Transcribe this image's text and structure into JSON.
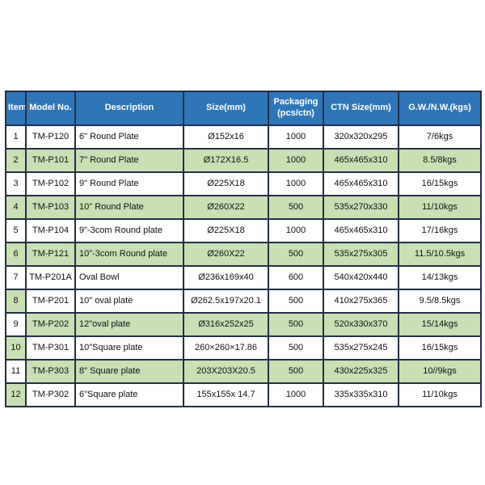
{
  "table": {
    "headers": [
      {
        "key": "item",
        "label": "Item"
      },
      {
        "key": "model",
        "label": "Model No."
      },
      {
        "key": "description",
        "label": "Description"
      },
      {
        "key": "size",
        "label": "Size(mm)"
      },
      {
        "key": "packaging",
        "label": "Packaging (pcs/ctn)"
      },
      {
        "key": "ctn",
        "label": "CTN Size(mm)"
      },
      {
        "key": "gw",
        "label": "G.W./N.W.(kgs)"
      }
    ],
    "rows": [
      {
        "item": "1",
        "model": "TM-P120",
        "description": "6\" Round Plate",
        "size": "Ø152x16",
        "packaging": "1000",
        "ctn": "320x320x295",
        "gw": "7/6kgs",
        "item_shaded": false,
        "data_shaded": false
      },
      {
        "item": "2",
        "model": "TM-P101",
        "description": "7\" Round Plate",
        "size": "Ø172X16.5",
        "packaging": "1000",
        "ctn": "465x465x310",
        "gw": "8.5/8kgs",
        "item_shaded": true,
        "data_shaded": true
      },
      {
        "item": "3",
        "model": "TM-P102",
        "description": "9\" Round Plate",
        "size": "Ø225X18",
        "packaging": "1000",
        "ctn": "465x465x310",
        "gw": "16/15kgs",
        "item_shaded": false,
        "data_shaded": false
      },
      {
        "item": "4",
        "model": "TM-P103",
        "description": "10\" Round Plate",
        "size": "Ø260X22",
        "packaging": "500",
        "ctn": "535x270x330",
        "gw": "11/10kgs",
        "item_shaded": true,
        "data_shaded": true
      },
      {
        "item": "5",
        "model": "TM-P104",
        "description": "9\"-3com Round plate",
        "size": "Ø225X18",
        "packaging": "1000",
        "ctn": "465x465x310",
        "gw": "17/16kgs",
        "item_shaded": false,
        "data_shaded": false
      },
      {
        "item": "6",
        "model": "TM-P121",
        "description": "10\"-3com Round plate",
        "size": "Ø260X22",
        "packaging": "500",
        "ctn": "535x275x305",
        "gw": "11.5/10.5kgs",
        "item_shaded": true,
        "data_shaded": true
      },
      {
        "item": "7",
        "model": "TM-P201A",
        "description": "Oval Bowl",
        "size": "Ø236x169x40",
        "packaging": "600",
        "ctn": "540x420x440",
        "gw": "14/13kgs",
        "item_shaded": false,
        "data_shaded": false
      },
      {
        "item": "8",
        "model": "TM-P201",
        "description": "10\" oval plate",
        "size": "Ø262.5x197x20.1",
        "packaging": "500",
        "ctn": "410x275x365",
        "gw": "9.5/8.5kgs",
        "item_shaded": true,
        "data_shaded": false
      },
      {
        "item": "9",
        "model": "TM-P202",
        "description": "12\"oval plate",
        "size": "Ø316x252x25",
        "packaging": "500",
        "ctn": "520x330x370",
        "gw": "15/14kgs",
        "item_shaded": false,
        "data_shaded": true
      },
      {
        "item": "10",
        "model": "TM-P301",
        "description": "10\"Square plate",
        "size": "260×260×17.86",
        "packaging": "500",
        "ctn": "535x275x245",
        "gw": "16/15kgs",
        "item_shaded": true,
        "data_shaded": false
      },
      {
        "item": "11",
        "model": "TM-P303",
        "description": "8\" Square plate",
        "size": "203X203X20.5",
        "packaging": "500",
        "ctn": "430x225x325",
        "gw": "10//9kgs",
        "item_shaded": false,
        "data_shaded": true
      },
      {
        "item": "12",
        "model": "TM-P302",
        "description": "6\"Square plate",
        "size": "155x155x 14.7",
        "packaging": "1000",
        "ctn": "335x335x310",
        "gw": "11/10kgs",
        "item_shaded": true,
        "data_shaded": false
      }
    ],
    "colors": {
      "header_bg": "#2f76b8",
      "header_text": "#ffffff",
      "shaded_row_bg": "#c8e0b4",
      "border": "#233044"
    }
  }
}
